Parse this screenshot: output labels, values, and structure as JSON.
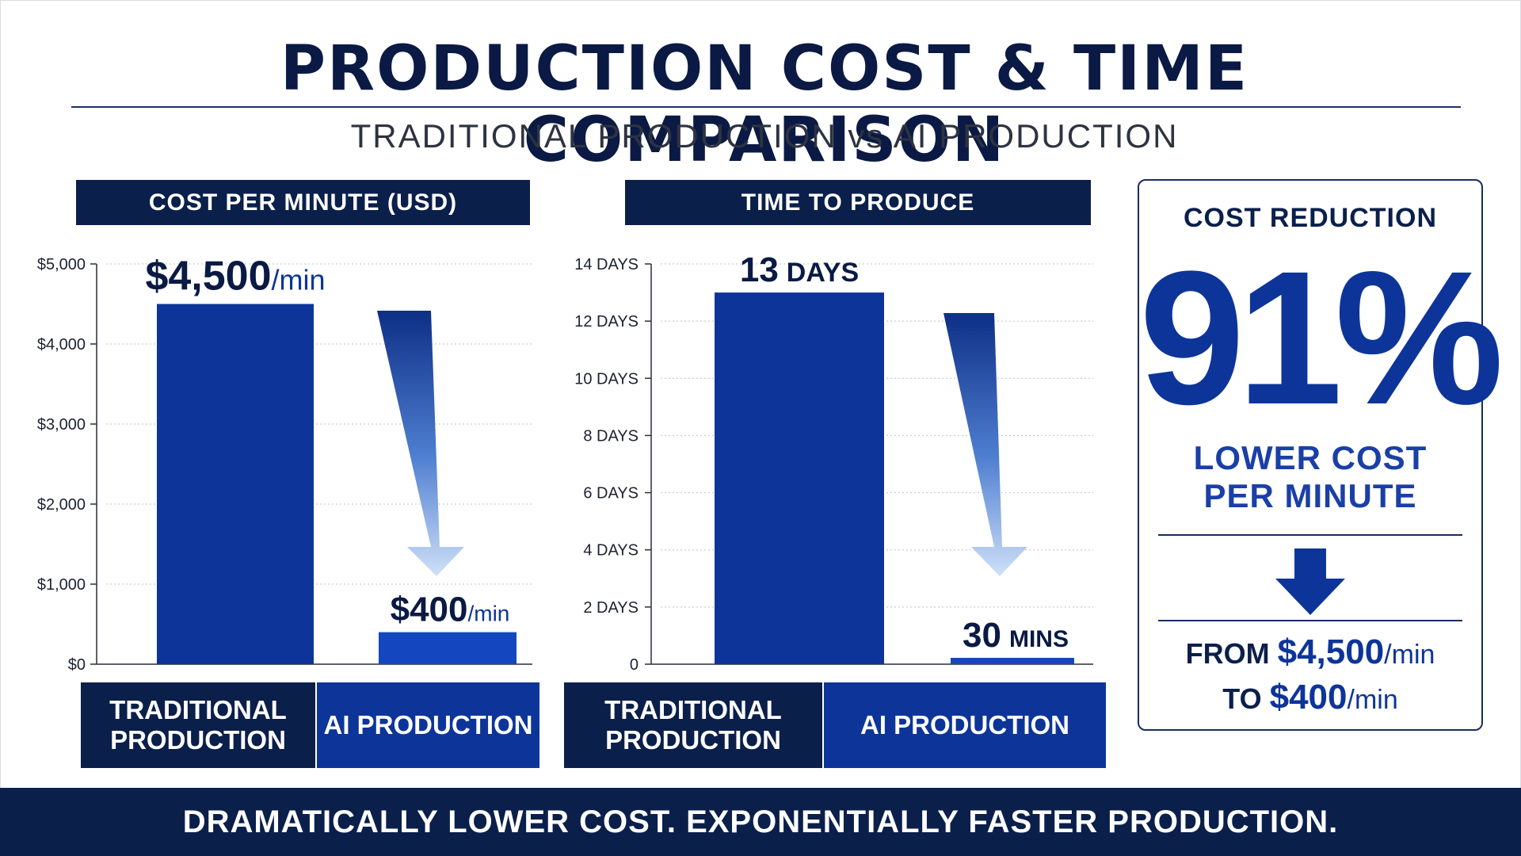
{
  "title": "PRODUCTION COST & TIME COMPARISON",
  "subtitle": "TRADITIONAL PRODUCTION vs AI PRODUCTION",
  "colors": {
    "navy": "#0b1f4b",
    "traditional_bar": "#0d3599",
    "ai_bar": "#1447bf",
    "accent": "#0d3599"
  },
  "chart_data": [
    {
      "type": "bar",
      "title": "COST PER MINUTE (USD)",
      "categories": [
        "TRADITIONAL PRODUCTION",
        "AI PRODUCTION"
      ],
      "values": [
        4500,
        400
      ],
      "ylim": [
        0,
        5000
      ],
      "yticks": [
        0,
        1000,
        2000,
        3000,
        4000,
        5000
      ],
      "ytick_labels": [
        "$0",
        "$1,000",
        "$2,000",
        "$3,000",
        "$4,000",
        "$5,000"
      ],
      "data_labels": [
        {
          "value": "$4,500",
          "unit": "/min"
        },
        {
          "value": "$400",
          "unit": "/min"
        }
      ],
      "grid": true
    },
    {
      "type": "bar",
      "title": "TIME TO PRODUCE",
      "categories": [
        "TRADITIONAL PRODUCTION",
        "AI PRODUCTION"
      ],
      "values": [
        13,
        0.0208
      ],
      "value_unit": "days",
      "ylim": [
        0,
        14
      ],
      "yticks": [
        0,
        2,
        4,
        6,
        8,
        10,
        12,
        14
      ],
      "ytick_labels": [
        "0",
        "2 DAYS",
        "4 DAYS",
        "6 DAYS",
        "8 DAYS",
        "10 DAYS",
        "12 DAYS",
        "14 DAYS"
      ],
      "data_labels": [
        {
          "value": "13",
          "unit": "DAYS"
        },
        {
          "value": "30",
          "unit": "MINS"
        }
      ],
      "grid": true
    }
  ],
  "categories_display": {
    "left": [
      "TRADITIONAL\nPRODUCTION",
      "AI PRODUCTION"
    ],
    "right": [
      "TRADITIONAL\nPRODUCTION",
      "AI PRODUCTION"
    ]
  },
  "card": {
    "title": "COST REDUCTION",
    "percent": "91%",
    "line1": "LOWER COST",
    "line2": "PER MINUTE",
    "from_label": "FROM",
    "from_value": "$4,500",
    "from_unit": "/min",
    "to_label": "TO",
    "to_value": "$400",
    "to_unit": "/min",
    "arrow_icon": "arrow-down-icon"
  },
  "footer": "DRAMATICALLY LOWER COST. EXPONENTIALLY FASTER PRODUCTION."
}
